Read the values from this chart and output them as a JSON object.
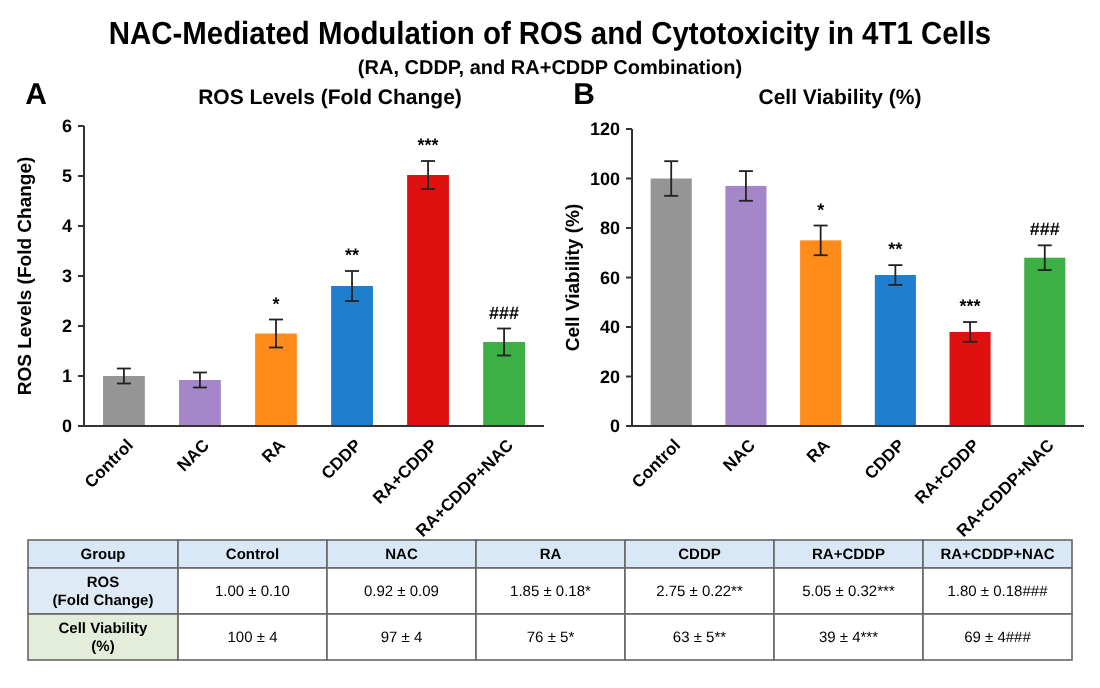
{
  "chart_data": [
    {
      "type": "other",
      "title": "NAC-Mediated Modulation of ROS and Cytotoxicity in 4T1 Cells",
      "subtitle": "(RA, CDDP, and RA+CDDP Combination)"
    },
    {
      "type": "bar",
      "title": "ROS Levels (Fold Change)",
      "ylabel": "ROS Levels (Fold Change)",
      "categories": [
        "Control",
        "NAC",
        "RA",
        "CDDP",
        "RA+CDDP",
        "RA+CDDP+NAC"
      ],
      "values": [
        1.0,
        0.92,
        1.85,
        2.8,
        5.02,
        1.68
      ],
      "errors": [
        0.15,
        0.15,
        0.28,
        0.3,
        0.28,
        0.27
      ],
      "colors": [
        "#959595",
        "#a587c9",
        "#ff8c1a",
        "#1e7fcf",
        "#e01010",
        "#3cb044"
      ],
      "ylim": [
        0,
        6
      ],
      "yticks": [
        0,
        1,
        2,
        3,
        4,
        5,
        6
      ],
      "grid": false,
      "annotations": [
        "A",
        {
          "text": "*",
          "x": "RA",
          "y": 2.13
        },
        {
          "text": "**",
          "x": "CDDP",
          "y": 3.1
        },
        {
          "text": "***",
          "x": "RA+CDDP",
          "y": 5.3
        },
        {
          "text": "###",
          "x": "RA+CDDP+NAC",
          "y": 1.95
        }
      ]
    },
    {
      "type": "bar",
      "title": "Cell Viability (%)",
      "ylabel": "Cell Viability (%)",
      "categories": [
        "Control",
        "NAC",
        "RA",
        "CDDP",
        "RA+CDDP",
        "RA+CDDP+NAC"
      ],
      "values": [
        100,
        97,
        75,
        61,
        38,
        68
      ],
      "errors": [
        7,
        6,
        6,
        4,
        4,
        5
      ],
      "colors": [
        "#959595",
        "#a587c9",
        "#ff8c1a",
        "#1e7fcf",
        "#e01010",
        "#3cb044"
      ],
      "ylim": [
        0,
        120
      ],
      "yticks": [
        0,
        20,
        40,
        60,
        80,
        100,
        120
      ],
      "grid": false,
      "annotations": [
        "B",
        {
          "text": "*",
          "x": "RA",
          "y": 81
        },
        {
          "text": "**",
          "x": "CDDP",
          "y": 65
        },
        {
          "text": "***",
          "x": "RA+CDDP",
          "y": 42
        },
        {
          "text": "###",
          "x": "RA+CDDP+NAC",
          "y": 73
        }
      ]
    },
    {
      "type": "other",
      "annotations": [
        "Group",
        "Control",
        "NAC",
        "RA",
        "CDDP",
        "RA+CDDP",
        "RA+CDDP+NAC",
        "ROS\n(Fold Change)",
        "1.00 ± 0.10",
        "0.92 ± 0.09",
        "1.85 ± 0.18*",
        "2.75 ± 0.22**",
        "5.05 ± 0.32***",
        "1.80 ± 0.18###",
        "Cell Viability\n(%)",
        "100 ± 4",
        "97 ± 4",
        "76 ± 5*",
        "63 ± 5**",
        "39 ± 4***",
        "69 ± 4###"
      ]
    }
  ]
}
